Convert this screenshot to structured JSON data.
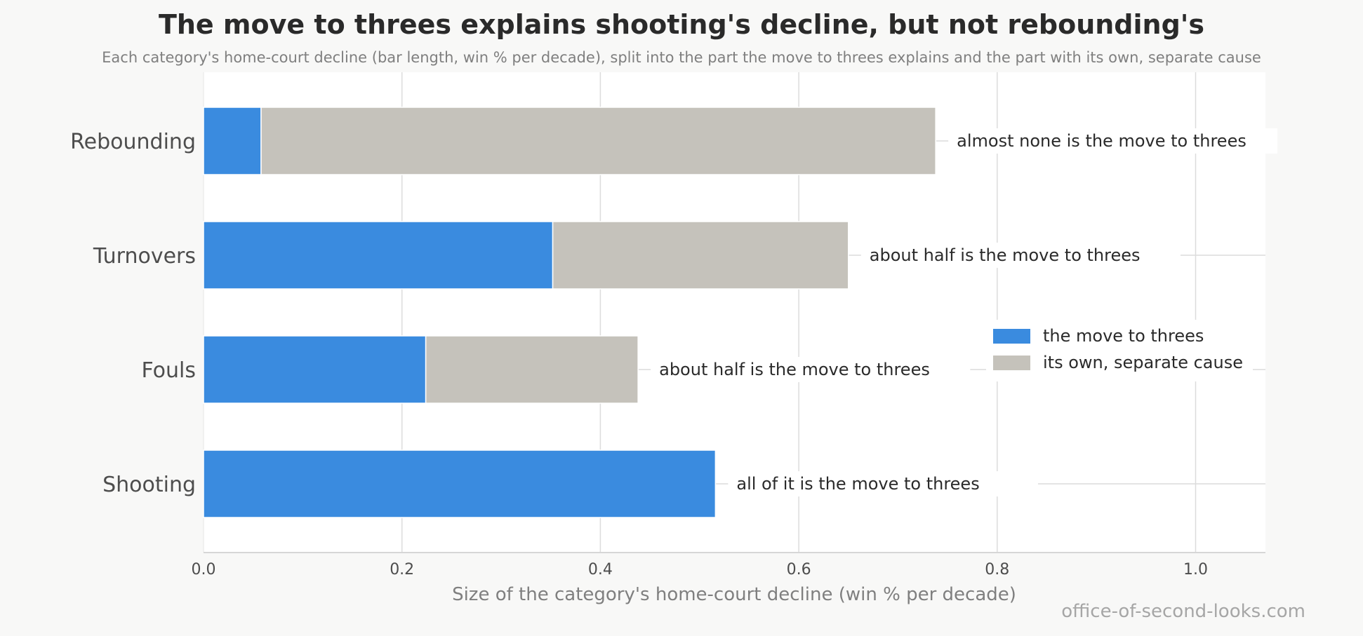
{
  "chart_data": {
    "type": "bar",
    "orientation": "horizontal",
    "stacked": true,
    "title": "The move to threes explains shooting's decline, but not rebounding's",
    "subtitle": "Each category's home-court decline (bar length, win % per decade), split into the part the move to threes explains and the part with its own, separate cause",
    "xlabel": "Size of the category's home-court decline (win % per decade)",
    "ylabel": "",
    "xlim": [
      0,
      1.07
    ],
    "xticks": [
      0.0,
      0.2,
      0.4,
      0.6,
      0.8,
      1.0
    ],
    "xtick_labels": [
      "0.0",
      "0.2",
      "0.4",
      "0.6",
      "0.8",
      "1.0"
    ],
    "grid": true,
    "categories": [
      "Rebounding",
      "Turnovers",
      "Fouls",
      "Shooting"
    ],
    "series": [
      {
        "name": "the move to threes",
        "color": "#3a8bdf",
        "values": [
          0.058,
          0.352,
          0.224,
          0.516
        ]
      },
      {
        "name": "its own, separate cause",
        "color": "#c5c2bb",
        "values": [
          0.68,
          0.298,
          0.214,
          0.0
        ]
      }
    ],
    "annotations": [
      "almost none is the move to threes",
      "about half is the move to threes",
      "about half is the move to threes",
      "all of it is the move to threes"
    ],
    "legend_position": "right",
    "credit": "office-of-second-looks.com"
  }
}
